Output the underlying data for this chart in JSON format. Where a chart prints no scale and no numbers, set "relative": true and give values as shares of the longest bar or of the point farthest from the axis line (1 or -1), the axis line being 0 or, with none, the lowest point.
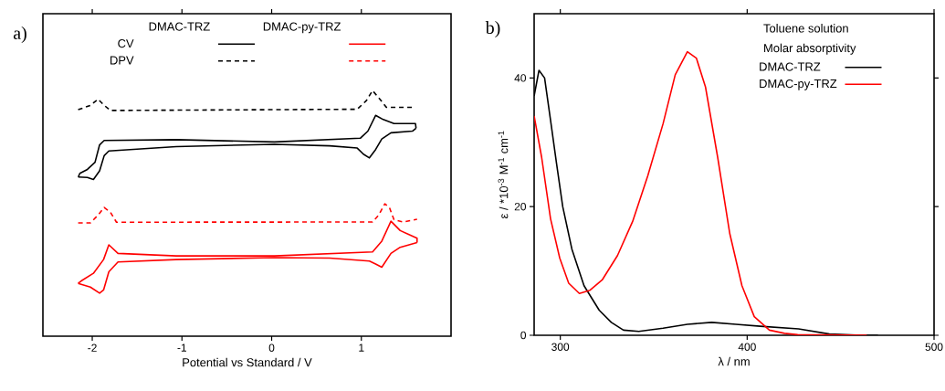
{
  "chart_data": [
    {
      "type": "line",
      "title": "a)",
      "xlabel": "Potential vs Standard / V",
      "relative": true,
      "legend": "top",
      "annotations": [
        "DMAC-TRZ",
        "DMAC-py-TRZ",
        "CV",
        "DPV"
      ],
      "xlim": [
        -2.55,
        2.0
      ],
      "xticks": [
        -2,
        -1,
        0,
        1
      ],
      "series": [
        {
          "color": "#000000",
          "line_style": "solid",
          "x": [
            -2.156,
            -2.138,
            -2.054,
            -1.969,
            -1.918,
            -1.867,
            -1.064,
            0.031,
            0.988,
            1.073,
            1.159,
            1.244,
            1.364,
            1.603,
            1.61
          ],
          "values": [
            0.648,
            0.663,
            0.679,
            0.708,
            0.779,
            0.797,
            0.8,
            0.791,
            0.806,
            0.835,
            0.899,
            0.882,
            0.866,
            0.866,
            0.847
          ]
        },
        {
          "color": "#000000",
          "line_style": "solid",
          "x": [
            1.61,
            1.569,
            1.33,
            1.228,
            1.159,
            1.09,
            1.023,
            0.954,
            0.646,
            0.031,
            -1.064,
            -1.815,
            -1.867,
            -1.918,
            -1.987,
            -2.054,
            -2.156
          ],
          "values": [
            0.847,
            0.835,
            0.828,
            0.803,
            0.76,
            0.726,
            0.741,
            0.766,
            0.775,
            0.781,
            0.772,
            0.754,
            0.735,
            0.673,
            0.638,
            0.646,
            0.648
          ]
        },
        {
          "color": "#ff0000",
          "line_style": "solid",
          "x": [
            -2.157,
            -2.123,
            -1.987,
            -1.874,
            -1.815,
            -1.713,
            -1.064,
            0.031,
            1.125,
            1.228,
            1.33,
            1.433,
            1.621,
            1.621
          ],
          "values": [
            0.215,
            0.225,
            0.256,
            0.312,
            0.372,
            0.337,
            0.327,
            0.327,
            0.343,
            0.387,
            0.468,
            0.43,
            0.399,
            0.381
          ]
        },
        {
          "color": "#ff0000",
          "line_style": "solid",
          "x": [
            1.621,
            1.433,
            1.33,
            1.228,
            1.159,
            1.09,
            0.646,
            0.031,
            -1.064,
            -1.713,
            -1.815,
            -1.874,
            -1.918,
            -2.021,
            -2.157
          ],
          "values": [
            0.381,
            0.362,
            0.337,
            0.281,
            0.294,
            0.306,
            0.318,
            0.32,
            0.312,
            0.302,
            0.262,
            0.188,
            0.175,
            0.2,
            0.215
          ]
        },
        {
          "color": "#000000",
          "line_style": "dashed",
          "x": [
            -2.157,
            -2.02,
            -1.935,
            -1.867,
            -1.798,
            0.954,
            1.056,
            1.125,
            1.193,
            1.279,
            1.587
          ],
          "values": [
            0.922,
            0.94,
            0.965,
            0.94,
            0.919,
            0.924,
            0.959,
            1.0,
            0.971,
            0.932,
            0.932
          ]
        },
        {
          "color": "#ff0000",
          "line_style": "dashed",
          "x": [
            -2.157,
            -2.021,
            -1.935,
            -1.867,
            -1.798,
            -1.73,
            1.125,
            1.193,
            1.262,
            1.313,
            1.364,
            1.467,
            1.621
          ],
          "values": [
            0.461,
            0.461,
            0.493,
            0.524,
            0.505,
            0.464,
            0.465,
            0.493,
            0.539,
            0.524,
            0.474,
            0.465,
            0.476
          ]
        }
      ]
    },
    {
      "type": "line",
      "title": "b)",
      "xlabel": "λ / nm",
      "ylabel": "ε / *10$^{-3}$ M$^{-1}$ cm$^{-1}$",
      "legend": "top right",
      "annotations": [
        "Toluene solution",
        "Molar absorptivity"
      ],
      "xlim": [
        286,
        500
      ],
      "ylim": [
        0,
        50
      ],
      "xticks": [
        300,
        400,
        500
      ],
      "yticks": [
        0,
        20,
        40
      ],
      "series": [
        {
          "name": "DMAC-TRZ",
          "color": "#000000",
          "x": [
            286,
            288.6,
            291.6,
            294.8,
            298,
            301.3,
            306.2,
            312.7,
            320.8,
            327.3,
            333.8,
            342,
            355,
            368,
            381,
            394,
            407,
            427.5,
            444,
            461,
            470
          ],
          "values": [
            37.2,
            41.2,
            40,
            33.4,
            26.7,
            20,
            13.4,
            7.7,
            3.9,
            2.0,
            0.8,
            0.6,
            1.1,
            1.7,
            2.0,
            1.7,
            1.4,
            1.0,
            0.2,
            0,
            0
          ]
        },
        {
          "name": "DMAC-py-TRZ",
          "color": "#ff0000",
          "x": [
            286,
            290,
            294.8,
            299.7,
            304.5,
            310.2,
            315.9,
            322.4,
            330.6,
            338.7,
            346.8,
            355,
            361.5,
            368,
            372.8,
            377.7,
            384.2,
            390.7,
            397.2,
            403.8,
            411.9,
            420,
            427,
            464
          ],
          "values": [
            34.1,
            27.7,
            18.1,
            12,
            8.1,
            6.5,
            7,
            8.6,
            12.4,
            17.7,
            24.8,
            32.9,
            40.5,
            44.1,
            43.1,
            38.6,
            27.7,
            15.8,
            7.7,
            2.9,
            0.8,
            0.3,
            0.1,
            0
          ]
        }
      ]
    }
  ]
}
